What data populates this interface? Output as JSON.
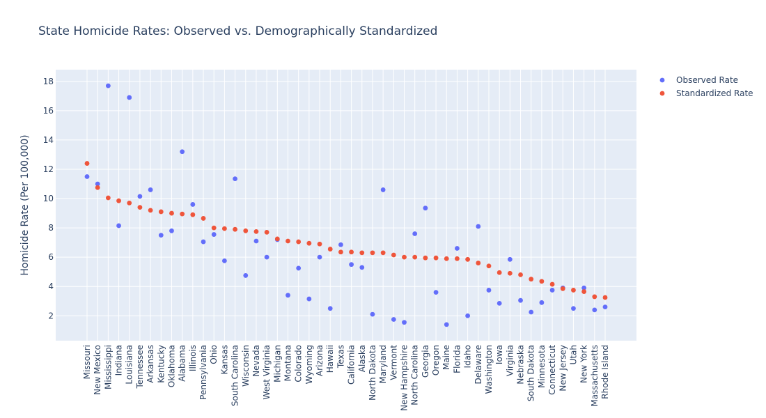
{
  "chart_data": {
    "type": "scatter",
    "title": "State Homicide Rates: Observed vs. Demographically Standardized",
    "xlabel": "",
    "ylabel": "Homicide Rate (Per 100,000)",
    "ylim": [
      0.3,
      18.8
    ],
    "yticks": [
      2,
      4,
      6,
      8,
      10,
      12,
      14,
      16,
      18
    ],
    "grid": true,
    "legend_position": "top-right",
    "categories": [
      "Missouri",
      "New Mexico",
      "Mississippi",
      "Indiana",
      "Louisiana",
      "Tennessee",
      "Arkansas",
      "Kentucky",
      "Oklahoma",
      "Alabama",
      "Illinois",
      "Pennsylvania",
      "Ohio",
      "Kansas",
      "South Carolina",
      "Wisconsin",
      "Nevada",
      "West Virginia",
      "Michigan",
      "Montana",
      "Colorado",
      "Wyoming",
      "Arizona",
      "Hawaii",
      "Texas",
      "California",
      "Alaska",
      "North Dakota",
      "Maryland",
      "Vermont",
      "New Hampshire",
      "North Carolina",
      "Georgia",
      "Oregon",
      "Maine",
      "Florida",
      "Idaho",
      "Delaware",
      "Washington",
      "Iowa",
      "Virginia",
      "Nebraska",
      "South Dakota",
      "Minnesota",
      "Connecticut",
      "New Jersey",
      "Utah",
      "New York",
      "Massachusetts",
      "Rhode Island"
    ],
    "series": [
      {
        "name": "Observed Rate",
        "color": "#636efa",
        "values": [
          11.5,
          11.0,
          17.7,
          8.15,
          16.9,
          10.15,
          10.6,
          7.5,
          7.8,
          13.2,
          9.6,
          7.05,
          7.55,
          5.75,
          11.35,
          4.75,
          7.1,
          6.0,
          7.2,
          3.4,
          5.25,
          3.15,
          6.0,
          2.5,
          6.85,
          5.5,
          5.3,
          2.1,
          10.6,
          1.75,
          1.55,
          7.6,
          9.35,
          3.6,
          1.4,
          6.6,
          2.0,
          8.1,
          3.75,
          2.85,
          5.85,
          3.05,
          2.25,
          2.9,
          3.75,
          3.9,
          2.5,
          3.9,
          2.4,
          2.6
        ]
      },
      {
        "name": "Standardized Rate",
        "color": "#ef553b",
        "values": [
          12.4,
          10.75,
          10.05,
          9.85,
          9.7,
          9.4,
          9.2,
          9.1,
          9.0,
          8.95,
          8.9,
          8.65,
          8.0,
          7.95,
          7.9,
          7.8,
          7.75,
          7.7,
          7.25,
          7.1,
          7.05,
          6.95,
          6.9,
          6.55,
          6.35,
          6.35,
          6.3,
          6.3,
          6.3,
          6.15,
          6.0,
          6.0,
          5.95,
          5.95,
          5.9,
          5.9,
          5.85,
          5.6,
          5.4,
          4.95,
          4.9,
          4.8,
          4.5,
          4.35,
          4.15,
          3.85,
          3.75,
          3.65,
          3.3,
          3.25
        ]
      }
    ]
  }
}
